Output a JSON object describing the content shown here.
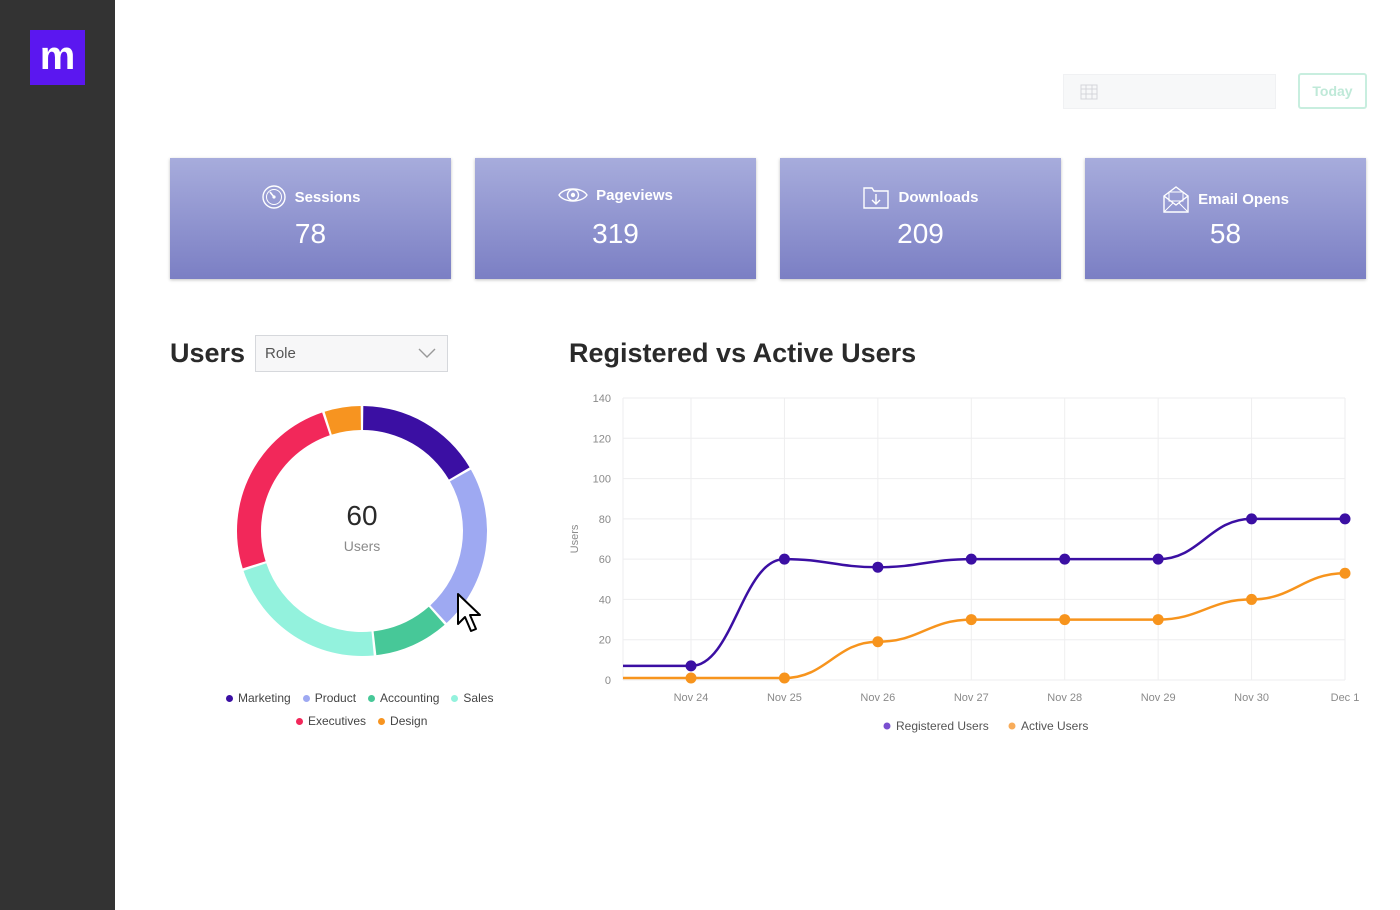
{
  "app": {
    "logo_letter": "m",
    "brand_color": "#5b17f0"
  },
  "header": {
    "date_input_value": "",
    "today_label": "Today"
  },
  "stats": [
    {
      "label": "Sessions",
      "value": "78",
      "icon": "speedometer-icon"
    },
    {
      "label": "Pageviews",
      "value": "319",
      "icon": "eye-icon"
    },
    {
      "label": "Downloads",
      "value": "209",
      "icon": "download-icon"
    },
    {
      "label": "Email Opens",
      "value": "58",
      "icon": "envelope-open-icon"
    }
  ],
  "users_panel": {
    "title": "Users",
    "filter_value": "Role",
    "total": "60",
    "total_label": "Users",
    "legend": [
      {
        "name": "Marketing",
        "color": "#3b0fa3"
      },
      {
        "name": "Product",
        "color": "#9ea9f2"
      },
      {
        "name": "Accounting",
        "color": "#47c898"
      },
      {
        "name": "Sales",
        "color": "#93f2dd"
      },
      {
        "name": "Executives",
        "color": "#f2285a"
      },
      {
        "name": "Design",
        "color": "#f79420"
      }
    ]
  },
  "line_panel": {
    "title": "Registered vs Active Users"
  },
  "chart_data": [
    {
      "type": "pie",
      "variant": "donut",
      "categories": [
        "Marketing",
        "Product",
        "Accounting",
        "Sales",
        "Executives",
        "Design"
      ],
      "values": [
        10,
        13,
        6,
        13,
        15,
        3
      ],
      "colors": [
        "#3b0fa3",
        "#9ea9f2",
        "#47c898",
        "#93f2dd",
        "#f2285a",
        "#f79420"
      ]
    },
    {
      "type": "line",
      "x": [
        "Nov 24",
        "Nov 25",
        "Nov 26",
        "Nov 27",
        "Nov 28",
        "Nov 29",
        "Nov 30",
        "Dec 1"
      ],
      "series": [
        {
          "name": "Registered Users",
          "values": [
            7,
            60,
            56,
            60,
            60,
            60,
            80,
            80
          ],
          "color": "#3b0fa3"
        },
        {
          "name": "Active Users",
          "values": [
            1,
            1,
            19,
            30,
            30,
            30,
            40,
            53
          ],
          "color": "#f7941d"
        }
      ],
      "ylabel": "Users",
      "ylim": [
        0,
        140
      ],
      "yticks": [
        0,
        20,
        40,
        60,
        80,
        100,
        120,
        140
      ],
      "grid": true,
      "legend_position": "bottom"
    }
  ]
}
